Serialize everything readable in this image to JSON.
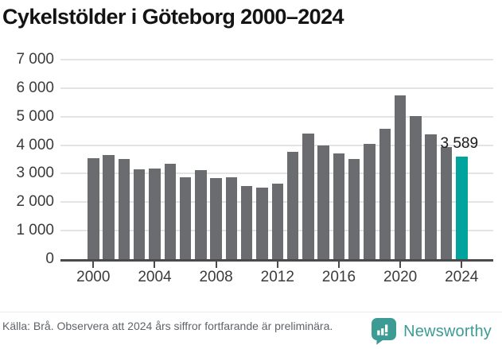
{
  "title": "Cykelstölder i Göteborg 2000–2024",
  "chart_data": {
    "type": "bar",
    "title": "Cykelstölder i Göteborg 2000–2024",
    "x": [
      2000,
      2001,
      2002,
      2003,
      2004,
      2005,
      2006,
      2007,
      2008,
      2009,
      2010,
      2011,
      2012,
      2013,
      2014,
      2015,
      2016,
      2017,
      2018,
      2019,
      2020,
      2021,
      2022,
      2023,
      2024
    ],
    "values": [
      3540,
      3660,
      3520,
      3140,
      3180,
      3360,
      2860,
      3110,
      2850,
      2870,
      2570,
      2520,
      2650,
      3760,
      4400,
      3990,
      3710,
      3510,
      4040,
      4580,
      5750,
      5010,
      4370,
      3930,
      3589
    ],
    "highlight_index": 24,
    "annotation": {
      "text": "3 589",
      "value": 3589,
      "year": 2024
    },
    "ylim": [
      0,
      7000
    ],
    "y_ticks": [
      {
        "value": 0,
        "label": "0"
      },
      {
        "value": 1000,
        "label": "1 000"
      },
      {
        "value": 2000,
        "label": "2 000"
      },
      {
        "value": 3000,
        "label": "3 000"
      },
      {
        "value": 4000,
        "label": "4 000"
      },
      {
        "value": 5000,
        "label": "5 000"
      },
      {
        "value": 6000,
        "label": "6 000"
      },
      {
        "value": 7000,
        "label": "7 000"
      }
    ],
    "x_ticks": [
      2000,
      2004,
      2008,
      2012,
      2016,
      2020,
      2024
    ],
    "grid": true,
    "legend": "none",
    "colors": {
      "bar": "#6b6c70",
      "highlight": "#00a49c",
      "gridline": "#e4e4e4",
      "axis": "#4a4a4b"
    }
  },
  "footer": {
    "source_text": "Källa: Brå. Observera att 2024 års siffror fortfarande är preliminära.",
    "brand_name": "Newsworthy",
    "brand_color": "#3c9c94"
  }
}
